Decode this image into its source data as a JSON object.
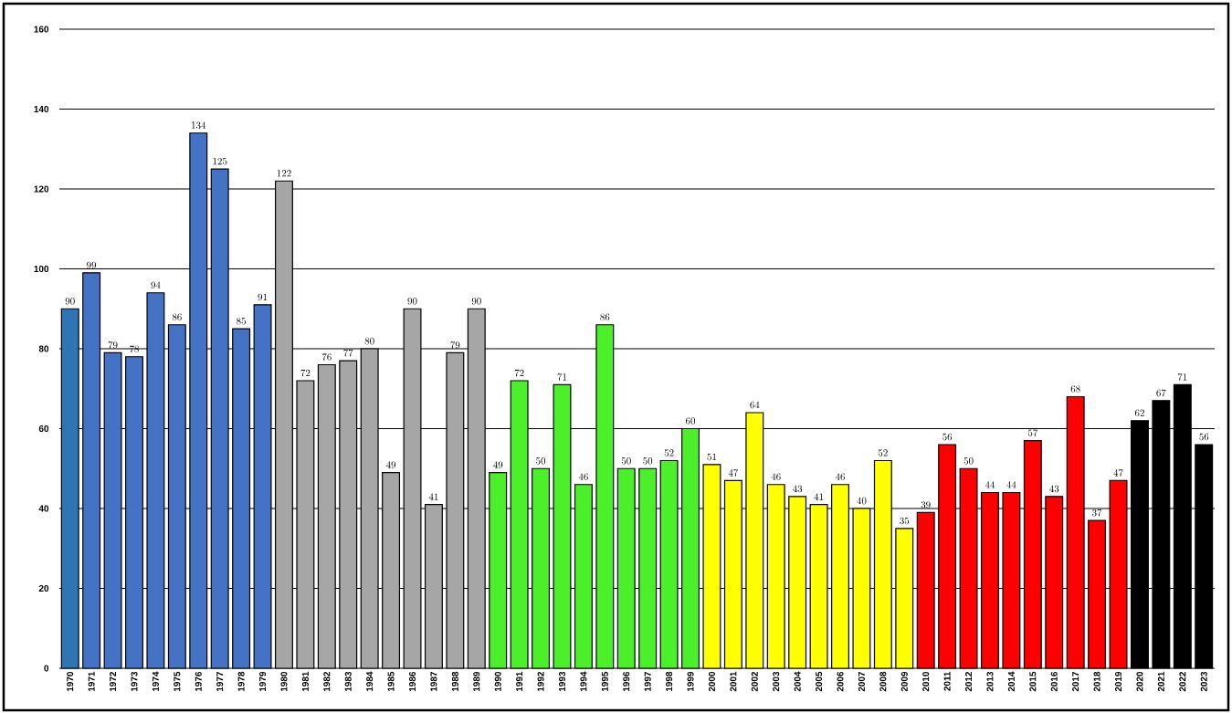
{
  "chart_data": {
    "type": "bar",
    "categories": [
      "1970",
      "1971",
      "1972",
      "1973",
      "1974",
      "1975",
      "1976",
      "1977",
      "1978",
      "1979",
      "1980",
      "1981",
      "1982",
      "1983",
      "1984",
      "1985",
      "1986",
      "1987",
      "1988",
      "1989",
      "1990",
      "1991",
      "1992",
      "1993",
      "1994",
      "1995",
      "1996",
      "1997",
      "1998",
      "1999",
      "2000",
      "2001",
      "2002",
      "2003",
      "2004",
      "2005",
      "2006",
      "2007",
      "2008",
      "2009",
      "2010",
      "2011",
      "2012",
      "2013",
      "2014",
      "2015",
      "2016",
      "2017",
      "2018",
      "2019",
      "2020",
      "2021",
      "2022",
      "2023"
    ],
    "values": [
      90,
      99,
      79,
      78,
      94,
      86,
      134,
      125,
      85,
      91,
      122,
      72,
      76,
      77,
      80,
      49,
      90,
      41,
      79,
      90,
      49,
      72,
      50,
      71,
      46,
      86,
      50,
      50,
      52,
      60,
      51,
      47,
      64,
      46,
      43,
      41,
      46,
      40,
      52,
      35,
      39,
      56,
      50,
      44,
      44,
      57,
      43,
      68,
      37,
      47,
      62,
      67,
      71,
      56
    ],
    "colors": [
      "#2e75b6",
      "#4472c4",
      "#4472c4",
      "#4472c4",
      "#4472c4",
      "#4472c4",
      "#4472c4",
      "#4472c4",
      "#4472c4",
      "#4472c4",
      "#a6a6a6",
      "#a6a6a6",
      "#a6a6a6",
      "#a6a6a6",
      "#a6a6a6",
      "#a6a6a6",
      "#a6a6a6",
      "#a6a6a6",
      "#a6a6a6",
      "#a6a6a6",
      "#4cf02a",
      "#4cf02a",
      "#4cf02a",
      "#4cf02a",
      "#4cf02a",
      "#4cf02a",
      "#4cf02a",
      "#4cf02a",
      "#4cf02a",
      "#4cf02a",
      "#ffff00",
      "#ffff00",
      "#ffff00",
      "#ffff00",
      "#ffff00",
      "#ffff00",
      "#ffff00",
      "#ffff00",
      "#ffff00",
      "#ffff00",
      "#ff0000",
      "#ff0000",
      "#ff0000",
      "#ff0000",
      "#ff0000",
      "#ff0000",
      "#ff0000",
      "#ff0000",
      "#ff0000",
      "#ff0000",
      "#000000",
      "#000000",
      "#000000",
      "#000000"
    ],
    "ylim": [
      0,
      160
    ],
    "yticks": [
      0,
      20,
      40,
      60,
      80,
      100,
      120,
      140,
      160
    ],
    "grid": "y",
    "data_labels": true
  }
}
